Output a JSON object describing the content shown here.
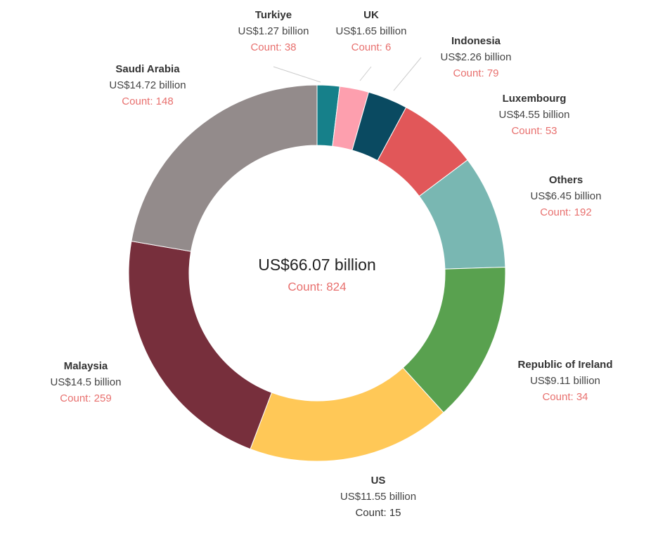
{
  "chart_data": {
    "type": "pie",
    "donut": true,
    "center": {
      "total_label": "US$66.07 billion",
      "count_label": "Count: 824"
    },
    "slices": [
      {
        "name": "Turkiye",
        "value": 1.27,
        "value_label": "US$1.27 billion",
        "count": 38,
        "count_label": "Count: 38",
        "color": "#16808a"
      },
      {
        "name": "UK",
        "value": 1.65,
        "value_label": "US$1.65 billion",
        "count": 6,
        "count_label": "Count: 6",
        "color": "#fd9fae"
      },
      {
        "name": "Indonesia",
        "value": 2.26,
        "value_label": "US$2.26 billion",
        "count": 79,
        "count_label": "Count: 79",
        "color": "#0a4a61"
      },
      {
        "name": "Luxembourg",
        "value": 4.55,
        "value_label": "US$4.55 billion",
        "count": 53,
        "count_label": "Count: 53",
        "color": "#e15759"
      },
      {
        "name": "Others",
        "value": 6.45,
        "value_label": "US$6.45 billion",
        "count": 192,
        "count_label": "Count: 192",
        "color": "#79b7b2"
      },
      {
        "name": "Republic of Ireland",
        "value": 9.11,
        "value_label": "US$9.11 billion",
        "count": 34,
        "count_label": "Count: 34",
        "color": "#59a14f"
      },
      {
        "name": "US",
        "value": 11.55,
        "value_label": "US$11.55 billion",
        "count": 15,
        "count_label": "Count: 15",
        "color": "#ffc857"
      },
      {
        "name": "Malaysia",
        "value": 14.5,
        "value_label": "US$14.5 billion",
        "count": 259,
        "count_label": "Count: 259",
        "color": "#772f3c"
      },
      {
        "name": "Saudi Arabia",
        "value": 14.72,
        "value_label": "US$14.72 billion",
        "count": 148,
        "count_label": "Count: 148",
        "color": "#938b8b"
      }
    ]
  }
}
